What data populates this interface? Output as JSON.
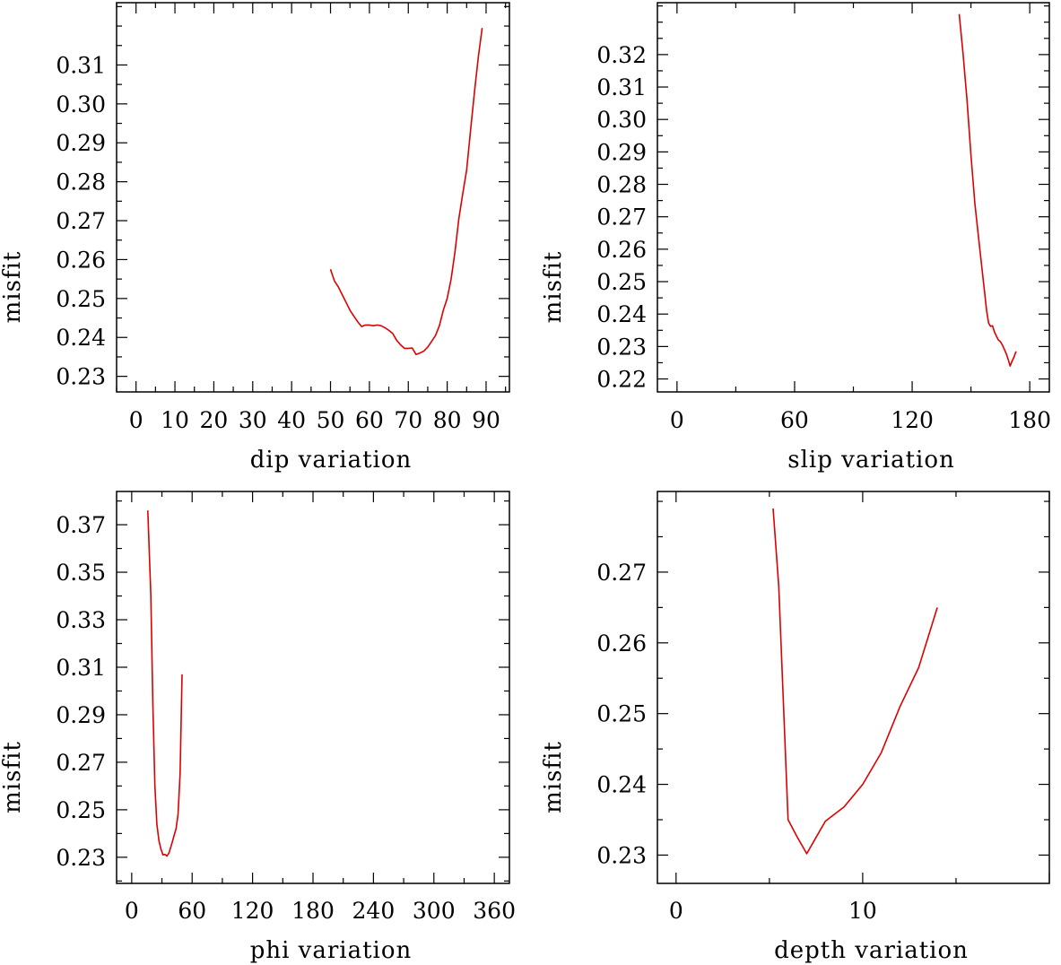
{
  "chart_data": [
    {
      "type": "line",
      "xlabel": "dip    variation",
      "ylabel": "misfit",
      "xlim": [
        -5,
        96
      ],
      "ylim": [
        0.226,
        0.326
      ],
      "xticks": [
        0,
        10,
        20,
        30,
        40,
        50,
        60,
        70,
        80,
        90
      ],
      "xtick_labels": [
        "0",
        "10",
        "20",
        "30",
        "40",
        "50",
        "60",
        "70",
        "80",
        "90"
      ],
      "yticks": [
        0.23,
        0.24,
        0.25,
        0.26,
        0.27,
        0.28,
        0.29,
        0.3,
        0.31
      ],
      "ytick_labels": [
        "0.23",
        "0.24",
        "0.25",
        "0.26",
        "0.27",
        "0.28",
        "0.29",
        "0.30",
        "0.31"
      ],
      "line_color": "#dd0000",
      "series": [
        {
          "name": "misfit",
          "x": [
            50,
            51,
            52,
            53,
            54,
            55,
            56,
            57,
            58,
            59,
            60,
            61,
            62,
            63,
            64,
            65,
            66,
            67,
            68,
            69,
            70,
            71,
            72,
            73,
            74,
            75,
            76,
            77,
            78,
            79,
            80,
            81,
            82,
            83,
            84,
            85,
            86,
            87,
            88,
            89
          ],
          "y": [
            0.2575,
            0.2545,
            0.253,
            0.251,
            0.249,
            0.247,
            0.2455,
            0.244,
            0.2428,
            0.2432,
            0.2432,
            0.243,
            0.2432,
            0.243,
            0.2425,
            0.2418,
            0.241,
            0.2393,
            0.2381,
            0.2372,
            0.2372,
            0.2373,
            0.2356,
            0.236,
            0.2365,
            0.2375,
            0.239,
            0.2405,
            0.243,
            0.247,
            0.25,
            0.255,
            0.262,
            0.2705,
            0.277,
            0.283,
            0.293,
            0.303,
            0.312,
            0.3195
          ]
        }
      ]
    },
    {
      "type": "line",
      "xlabel": "slip   variation",
      "ylabel": "misfit",
      "xlim": [
        -10,
        190
      ],
      "ylim": [
        0.216,
        0.336
      ],
      "xticks": [
        0,
        60,
        120,
        180
      ],
      "xtick_labels": [
        "0",
        "60",
        "120",
        "180"
      ],
      "yticks": [
        0.22,
        0.23,
        0.24,
        0.25,
        0.26,
        0.27,
        0.28,
        0.29,
        0.3,
        0.31,
        0.32
      ],
      "ytick_labels": [
        "0.22",
        "0.23",
        "0.24",
        "0.25",
        "0.26",
        "0.27",
        "0.28",
        "0.29",
        "0.30",
        "0.31",
        "0.32"
      ],
      "line_color": "#dd0000",
      "series": [
        {
          "name": "misfit",
          "x": [
            144,
            146,
            148,
            150,
            152,
            154,
            156,
            158,
            159,
            160,
            161,
            162,
            163,
            164,
            165,
            166,
            167,
            168,
            169,
            170,
            171,
            172,
            173
          ],
          "y": [
            0.3325,
            0.32,
            0.306,
            0.289,
            0.274,
            0.263,
            0.252,
            0.241,
            0.2372,
            0.2362,
            0.2364,
            0.2345,
            0.2332,
            0.232,
            0.2315,
            0.2305,
            0.2292,
            0.2278,
            0.226,
            0.224,
            0.2255,
            0.2268,
            0.2285
          ]
        }
      ]
    },
    {
      "type": "line",
      "xlabel": "phi    variation",
      "ylabel": "misfit",
      "xlim": [
        -15,
        375
      ],
      "ylim": [
        0.219,
        0.384
      ],
      "xticks": [
        0,
        60,
        120,
        180,
        240,
        300,
        360
      ],
      "xtick_labels": [
        "0",
        "60",
        "120",
        "180",
        "240",
        "300",
        "360"
      ],
      "yticks": [
        0.23,
        0.25,
        0.27,
        0.29,
        0.31,
        0.33,
        0.35,
        0.37
      ],
      "ytick_labels": [
        "0.23",
        "0.25",
        "0.27",
        "0.29",
        "0.31",
        "0.33",
        "0.35",
        "0.37"
      ],
      "line_color": "#dd0000",
      "series": [
        {
          "name": "misfit",
          "x": [
            16,
            19,
            21,
            23,
            25,
            27,
            29,
            31,
            33,
            35,
            37,
            40,
            42,
            44,
            46,
            48,
            50
          ],
          "y": [
            0.376,
            0.34,
            0.295,
            0.26,
            0.244,
            0.237,
            0.2335,
            0.231,
            0.2312,
            0.2305,
            0.2318,
            0.236,
            0.239,
            0.242,
            0.248,
            0.265,
            0.307
          ]
        }
      ]
    },
    {
      "type": "line",
      "xlabel": "depth  variation",
      "ylabel": "misfit",
      "xlim": [
        -1,
        20
      ],
      "ylim": [
        0.226,
        0.2814
      ],
      "xticks": [
        0,
        10
      ],
      "xtick_labels": [
        "0",
        "10"
      ],
      "yticks": [
        0.23,
        0.24,
        0.25,
        0.26,
        0.27
      ],
      "ytick_labels": [
        "0.23",
        "0.24",
        "0.25",
        "0.26",
        "0.27"
      ],
      "line_color": "#dd0000",
      "series": [
        {
          "name": "misfit",
          "x": [
            5.2,
            5.5,
            6.0,
            6.5,
            7.0,
            7.5,
            8.0,
            9.0,
            10.0,
            11.0,
            12.0,
            13.0,
            14.0
          ],
          "y": [
            0.279,
            0.268,
            0.235,
            0.2325,
            0.2302,
            0.2325,
            0.2348,
            0.2368,
            0.24,
            0.2445,
            0.251,
            0.2565,
            0.265
          ]
        }
      ]
    }
  ]
}
